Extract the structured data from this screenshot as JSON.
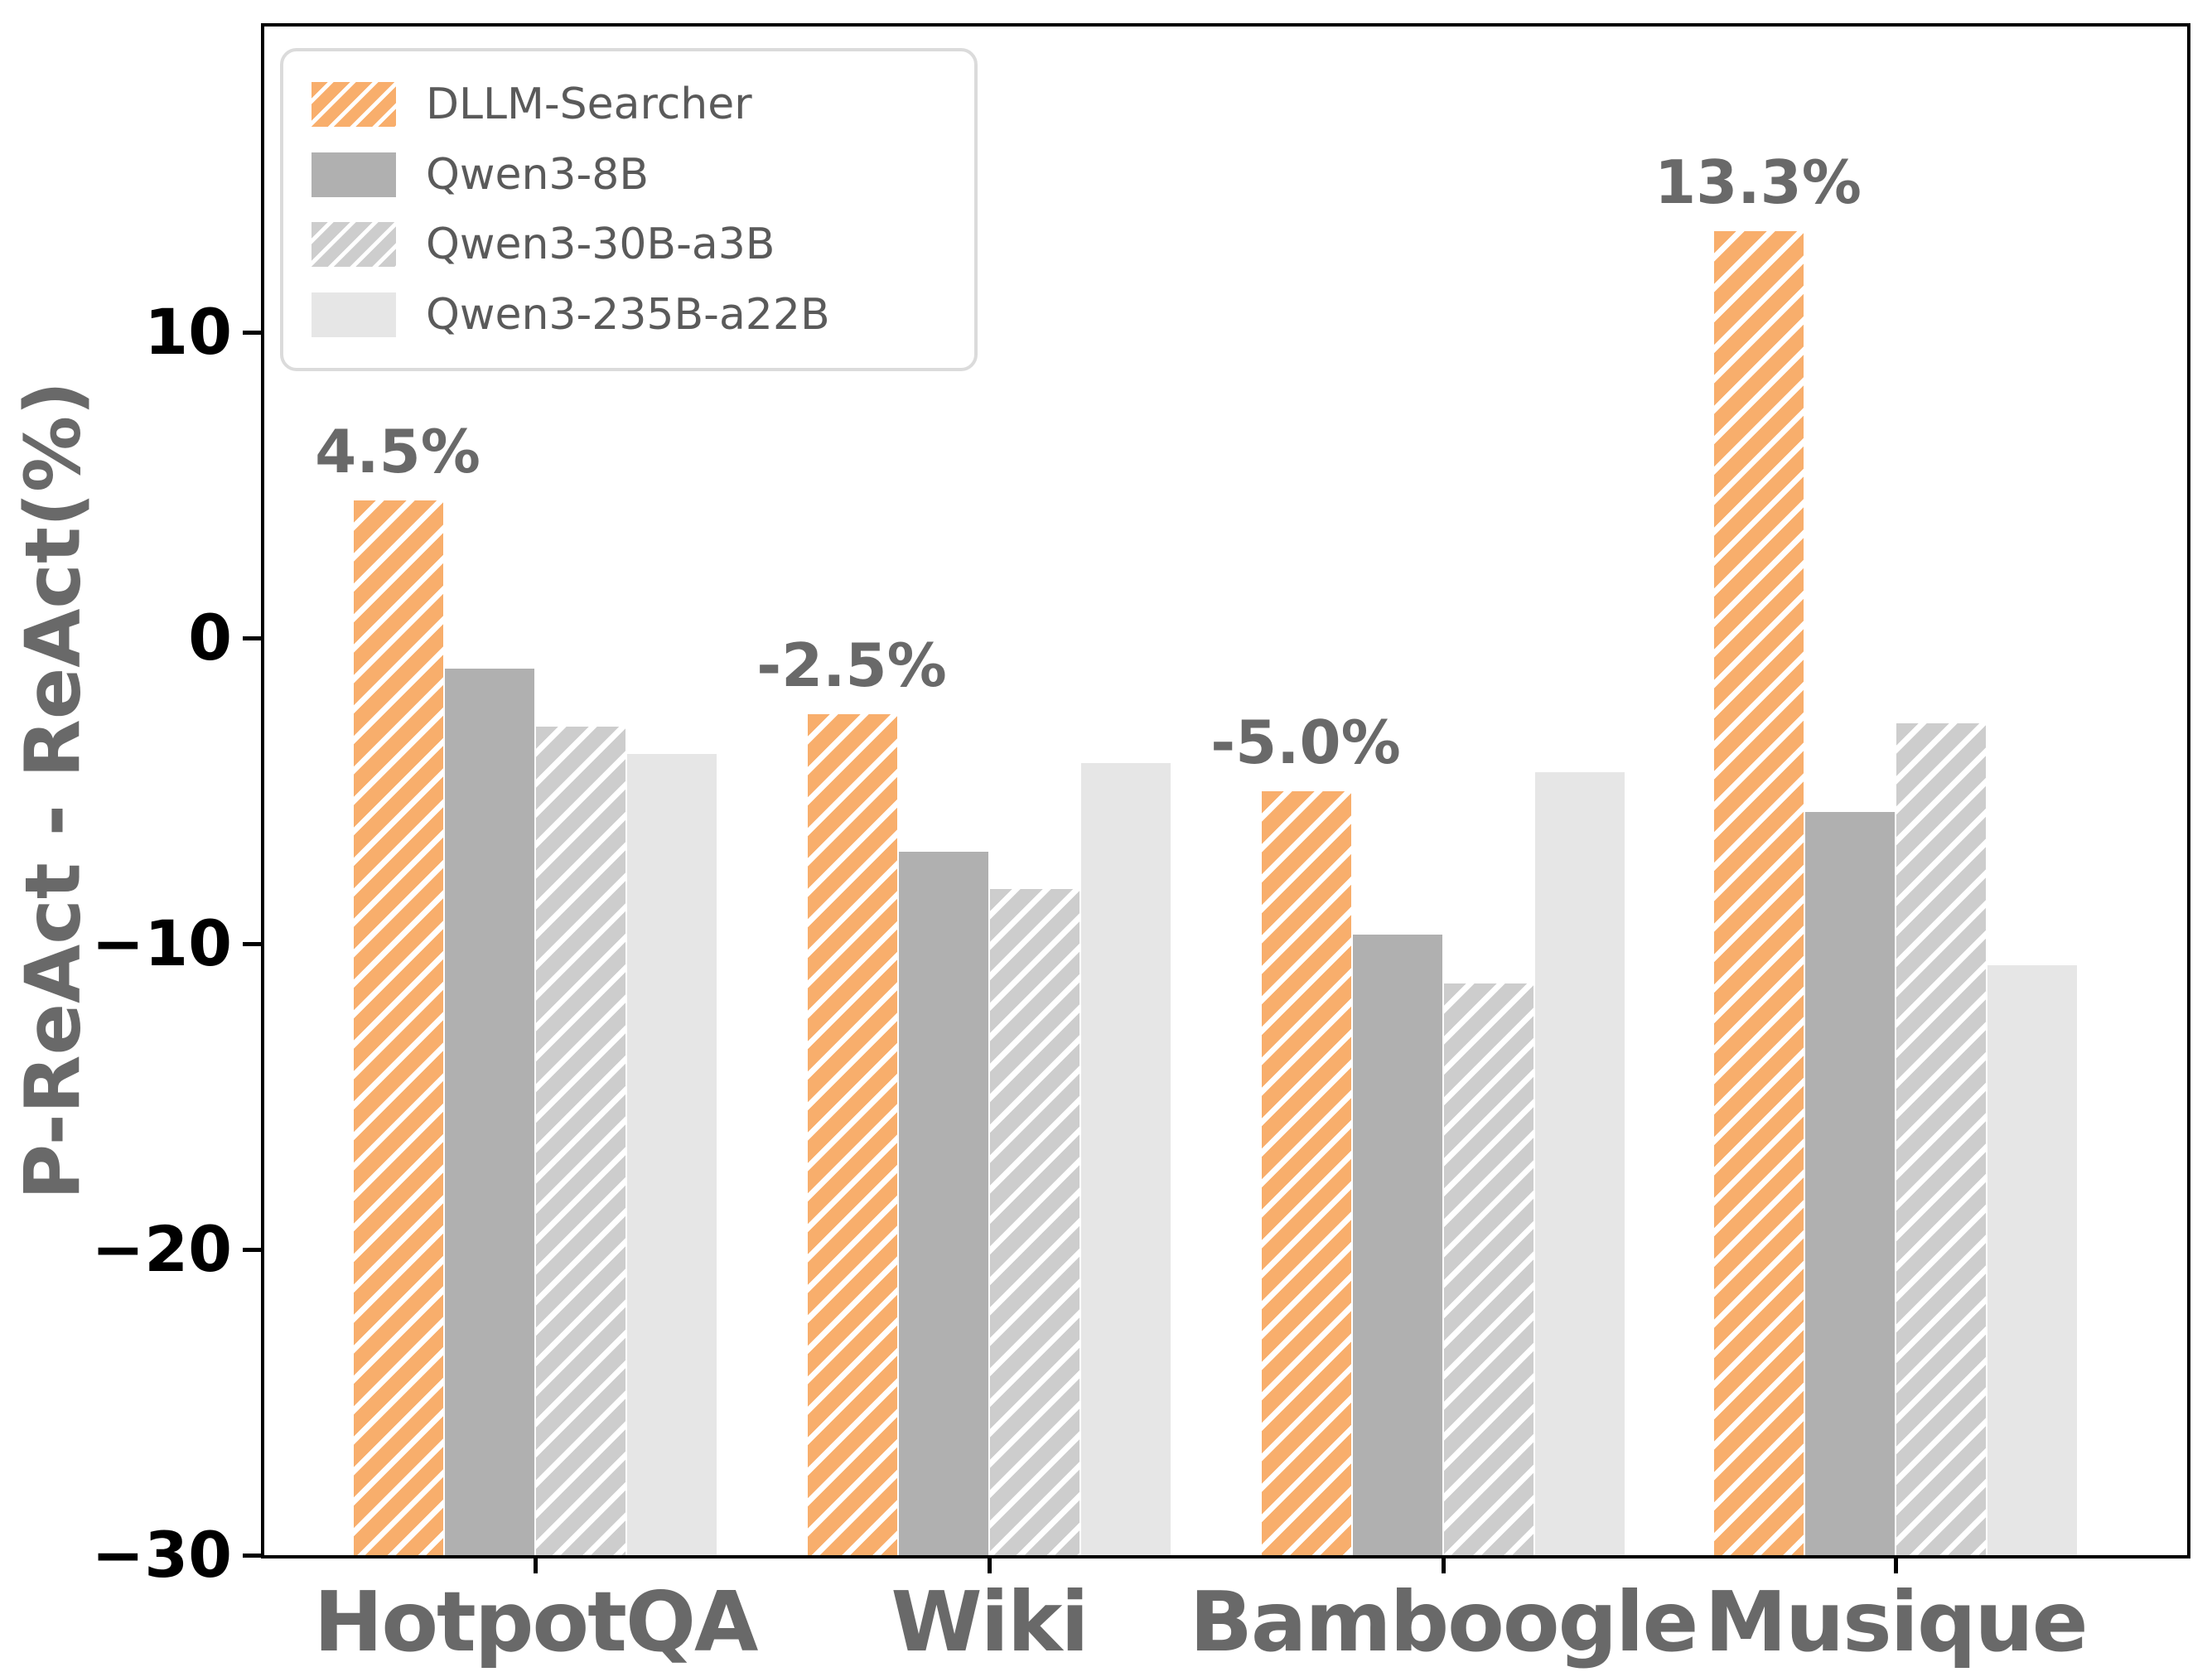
{
  "chart_data": {
    "type": "bar",
    "title": "",
    "xlabel": "",
    "ylabel": "P-ReAct - ReAct(%)",
    "categories": [
      "HotpotQA",
      "Wiki",
      "Bamboogle",
      "Musique"
    ],
    "series": [
      {
        "name": "DLLM-Searcher",
        "color": "#F8AE6C",
        "hatch": true,
        "values": [
          4.5,
          -2.5,
          -5.0,
          13.3
        ],
        "labels": [
          "4.5%",
          "-2.5%",
          "-5.0%",
          "13.3%"
        ]
      },
      {
        "name": "Qwen3-8B",
        "color": "#B0B0B0",
        "hatch": false,
        "values": [
          -1.0,
          -7.0,
          -9.7,
          -5.7
        ]
      },
      {
        "name": "Qwen3-30B-a3B",
        "color": "#CDCDCD",
        "hatch": true,
        "values": [
          -2.9,
          -8.2,
          -11.3,
          -2.8
        ]
      },
      {
        "name": "Qwen3-235B-a22B",
        "color": "#E6E6E6",
        "hatch": false,
        "values": [
          -3.8,
          -4.1,
          -4.4,
          -10.7
        ]
      }
    ],
    "ylim": [
      -30,
      20
    ],
    "yticks": [
      {
        "value": 10,
        "label": "10"
      },
      {
        "value": 0,
        "label": "0"
      },
      {
        "value": -10,
        "label": "−10"
      },
      {
        "value": -20,
        "label": "−20"
      },
      {
        "value": -30,
        "label": "−30"
      }
    ],
    "bar_base": -30,
    "grid": false,
    "legend_position": "upper left",
    "colors": {
      "axis": "#000000",
      "category_text": "#696969",
      "annotation_text": "#696969",
      "legend_text": "#5a5a5a",
      "legend_border": "#DBDBDB",
      "hatch_line": "#ffffff"
    }
  }
}
